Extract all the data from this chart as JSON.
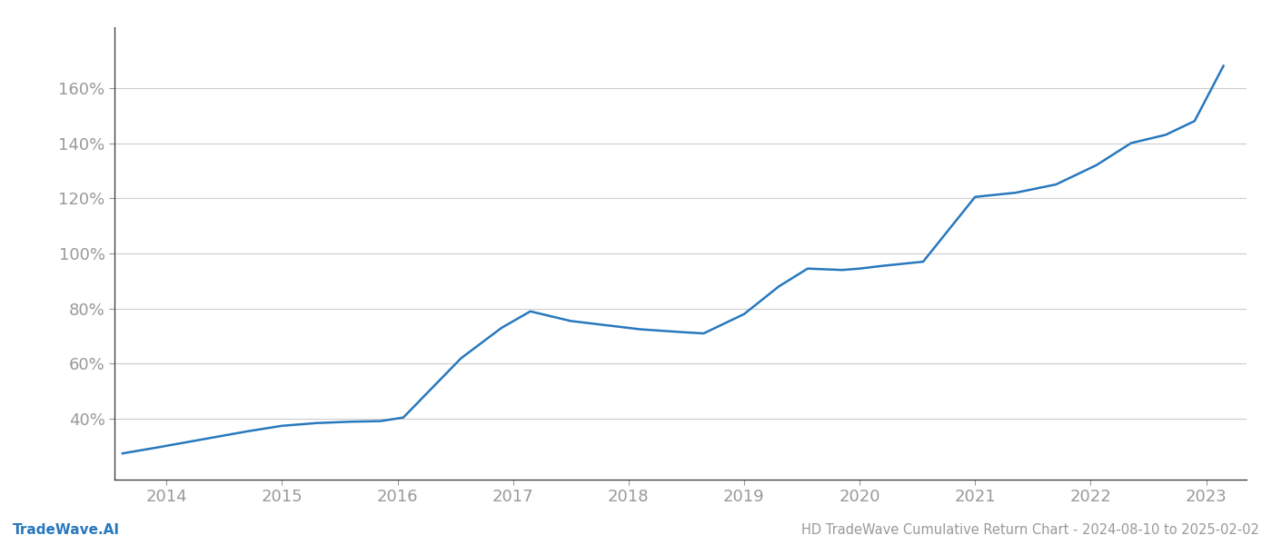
{
  "title": "HD TradeWave Cumulative Return Chart - 2024-08-10 to 2025-02-02",
  "watermark": "TradeWave.AI",
  "line_color": "#2878be",
  "line_width": 1.8,
  "background_color": "#ffffff",
  "grid_color": "#cccccc",
  "x_years": [
    2014,
    2015,
    2016,
    2017,
    2018,
    2019,
    2020,
    2021,
    2022,
    2023
  ],
  "x_values": [
    2013.62,
    2013.9,
    2014.3,
    2014.7,
    2015.0,
    2015.3,
    2015.6,
    2015.85,
    2016.05,
    2016.55,
    2016.9,
    2017.15,
    2017.5,
    2017.8,
    2018.1,
    2018.45,
    2018.65,
    2019.0,
    2019.3,
    2019.55,
    2019.85,
    2020.0,
    2020.2,
    2020.55,
    2021.0,
    2021.35,
    2021.7,
    2022.05,
    2022.35,
    2022.65,
    2022.9,
    2023.15
  ],
  "y_values": [
    27.5,
    29.5,
    32.5,
    35.5,
    37.5,
    38.5,
    39.0,
    39.2,
    40.5,
    62.0,
    73.0,
    79.0,
    75.5,
    74.0,
    72.5,
    71.5,
    71.0,
    78.0,
    88.0,
    94.5,
    94.0,
    94.5,
    95.5,
    97.0,
    120.5,
    122.0,
    125.0,
    132.0,
    140.0,
    143.0,
    148.0,
    168.0
  ],
  "yticks": [
    40,
    60,
    80,
    100,
    120,
    140,
    160
  ],
  "ylim": [
    18,
    182
  ],
  "xlim": [
    2013.55,
    2023.35
  ],
  "title_fontsize": 10.5,
  "watermark_fontsize": 11,
  "tick_fontsize": 13,
  "tick_color": "#999999",
  "spine_color": "#bbbbbb",
  "left_spine_color": "#333333"
}
